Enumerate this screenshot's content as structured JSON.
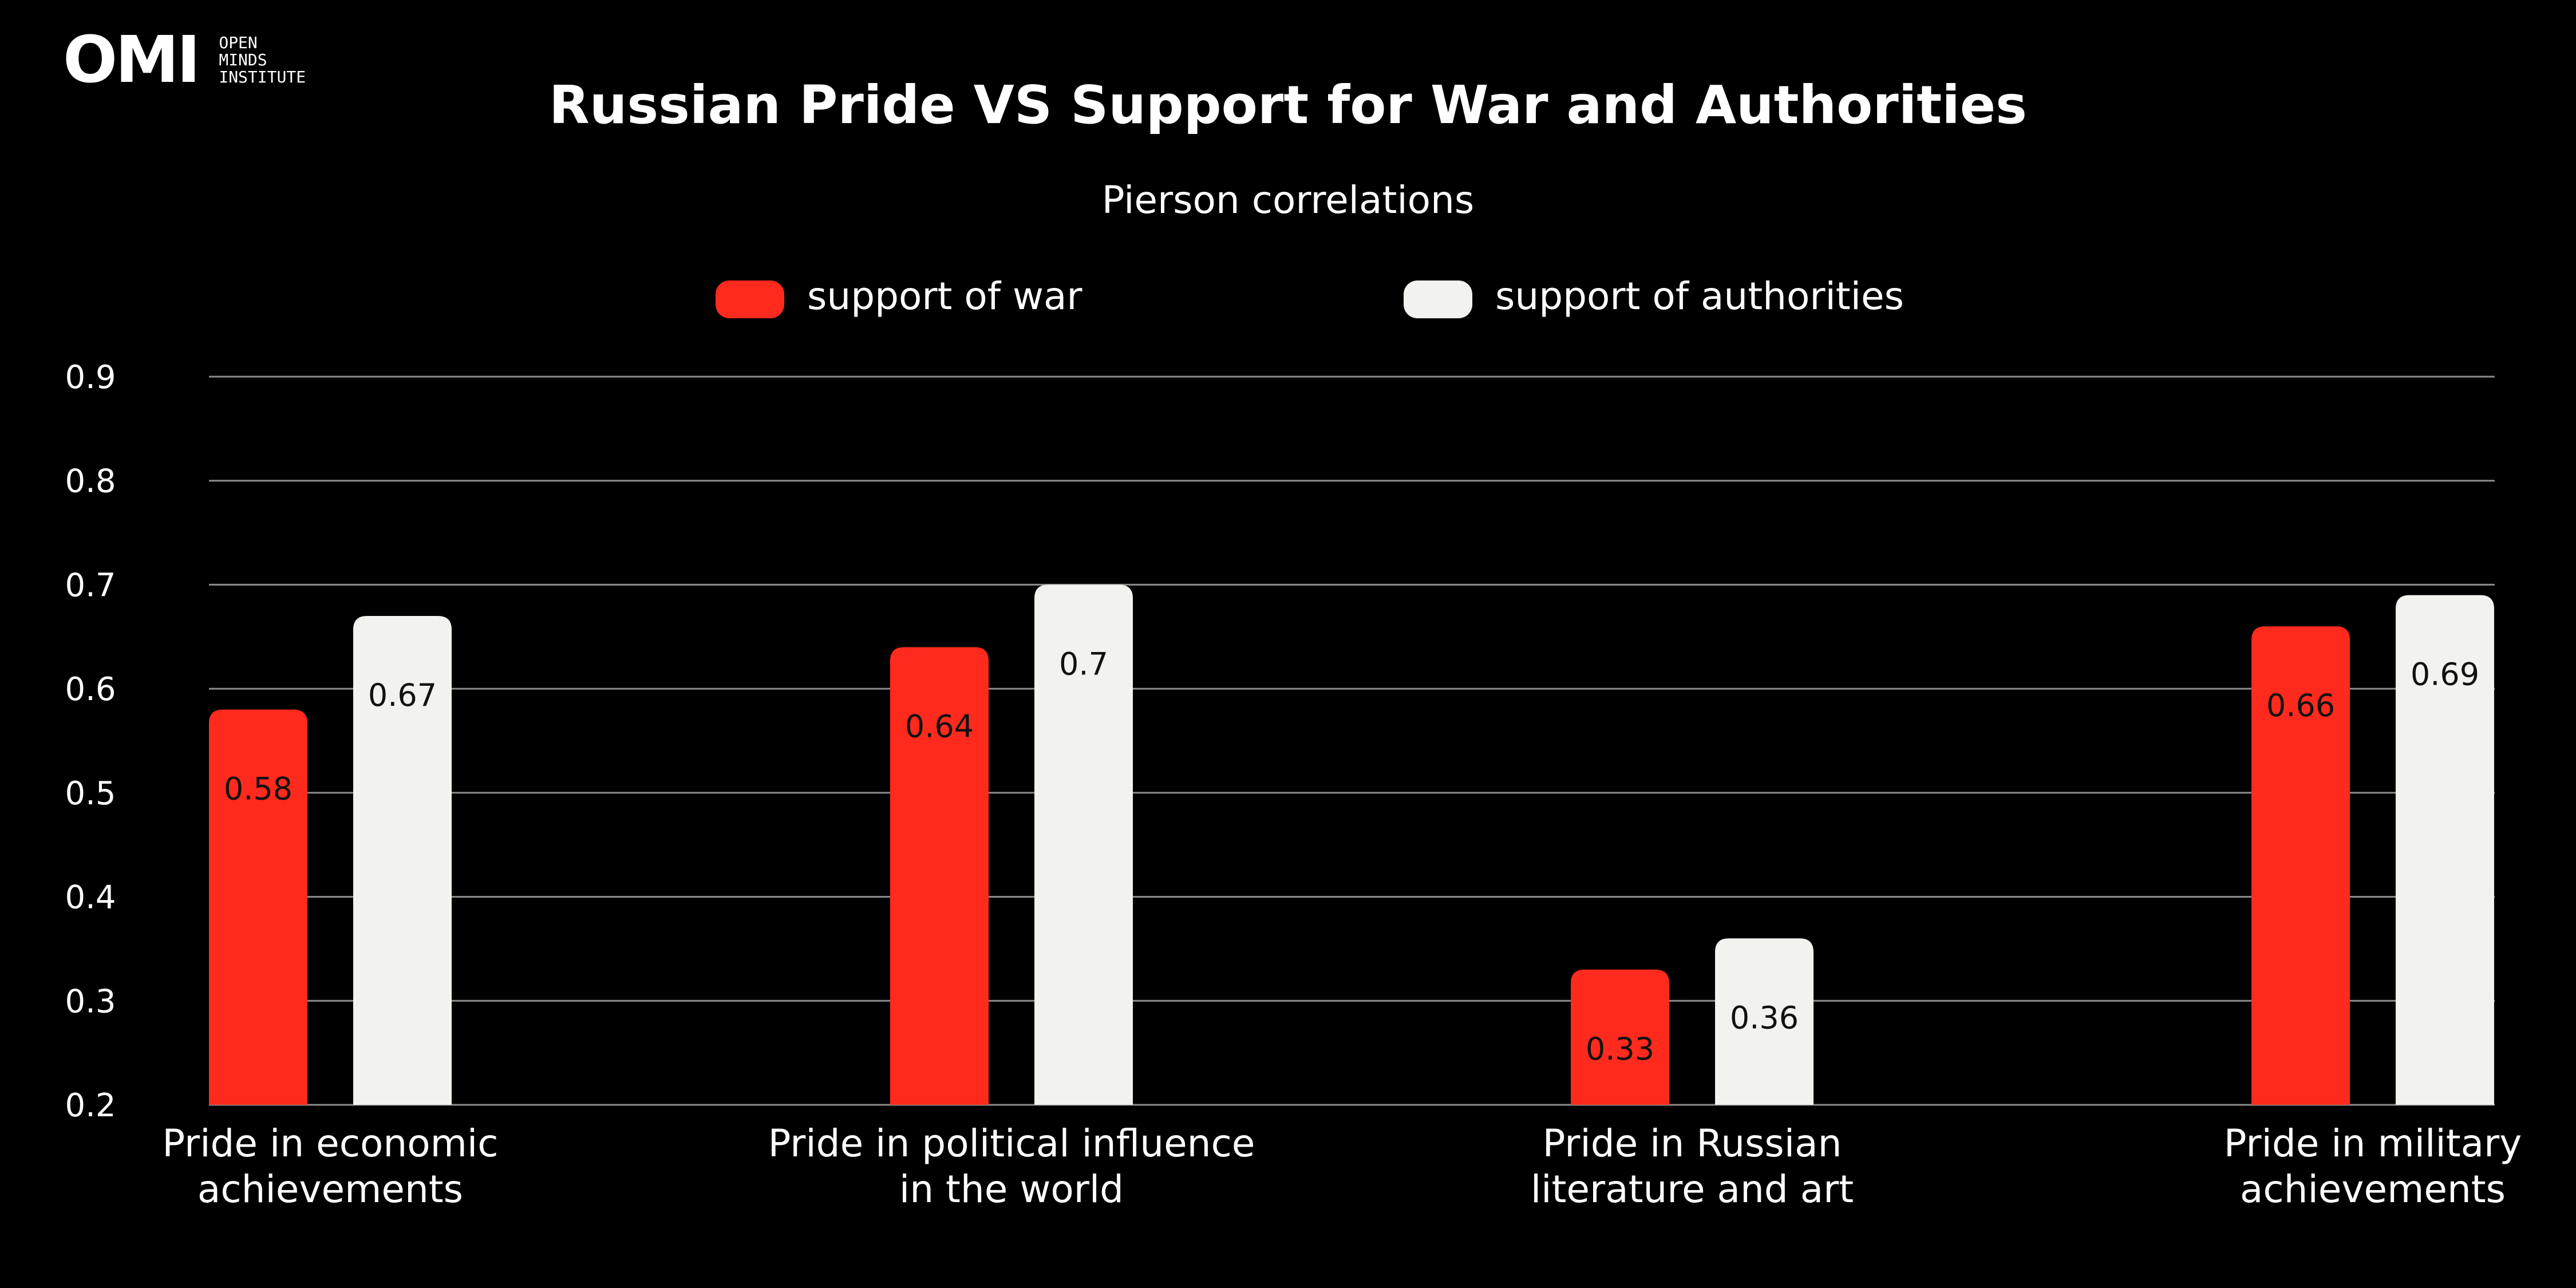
{
  "logo": {
    "mark": "OMI",
    "lines": [
      "OPEN",
      "MINDS",
      "INSTITUTE"
    ]
  },
  "colors": {
    "war": "#ff2a1e",
    "authorities": "#f2f2ee",
    "background": "#000000",
    "grid": "#8c8c8c",
    "text": "#ffffff"
  },
  "chart_data": {
    "type": "bar",
    "title": "Russian Pride VS Support for War and Authorities",
    "subtitle": "Pierson correlations",
    "xlabel": "",
    "ylabel": "",
    "ylim": [
      0.2,
      0.9
    ],
    "yticks": [
      "0.2",
      "0.3",
      "0.4",
      "0.5",
      "0.6",
      "0.7",
      "0.8",
      "0.9"
    ],
    "grid": true,
    "legend_position": "top-center",
    "categories": [
      [
        "Pride in economic",
        "achievements"
      ],
      [
        "Pride in political influence",
        "in the world"
      ],
      [
        "Pride in Russian",
        "literature and art"
      ],
      [
        "Pride in military",
        "achievements"
      ]
    ],
    "series": [
      {
        "name": "support of war",
        "values": [
          0.58,
          0.64,
          0.33,
          0.66
        ],
        "labels": [
          "0.58",
          "0.64",
          "0.33",
          "0.66"
        ]
      },
      {
        "name": "support of authorities",
        "values": [
          0.67,
          0.7,
          0.36,
          0.69
        ],
        "labels": [
          "0.67",
          "0.7",
          "0.36",
          "0.69"
        ]
      }
    ]
  }
}
